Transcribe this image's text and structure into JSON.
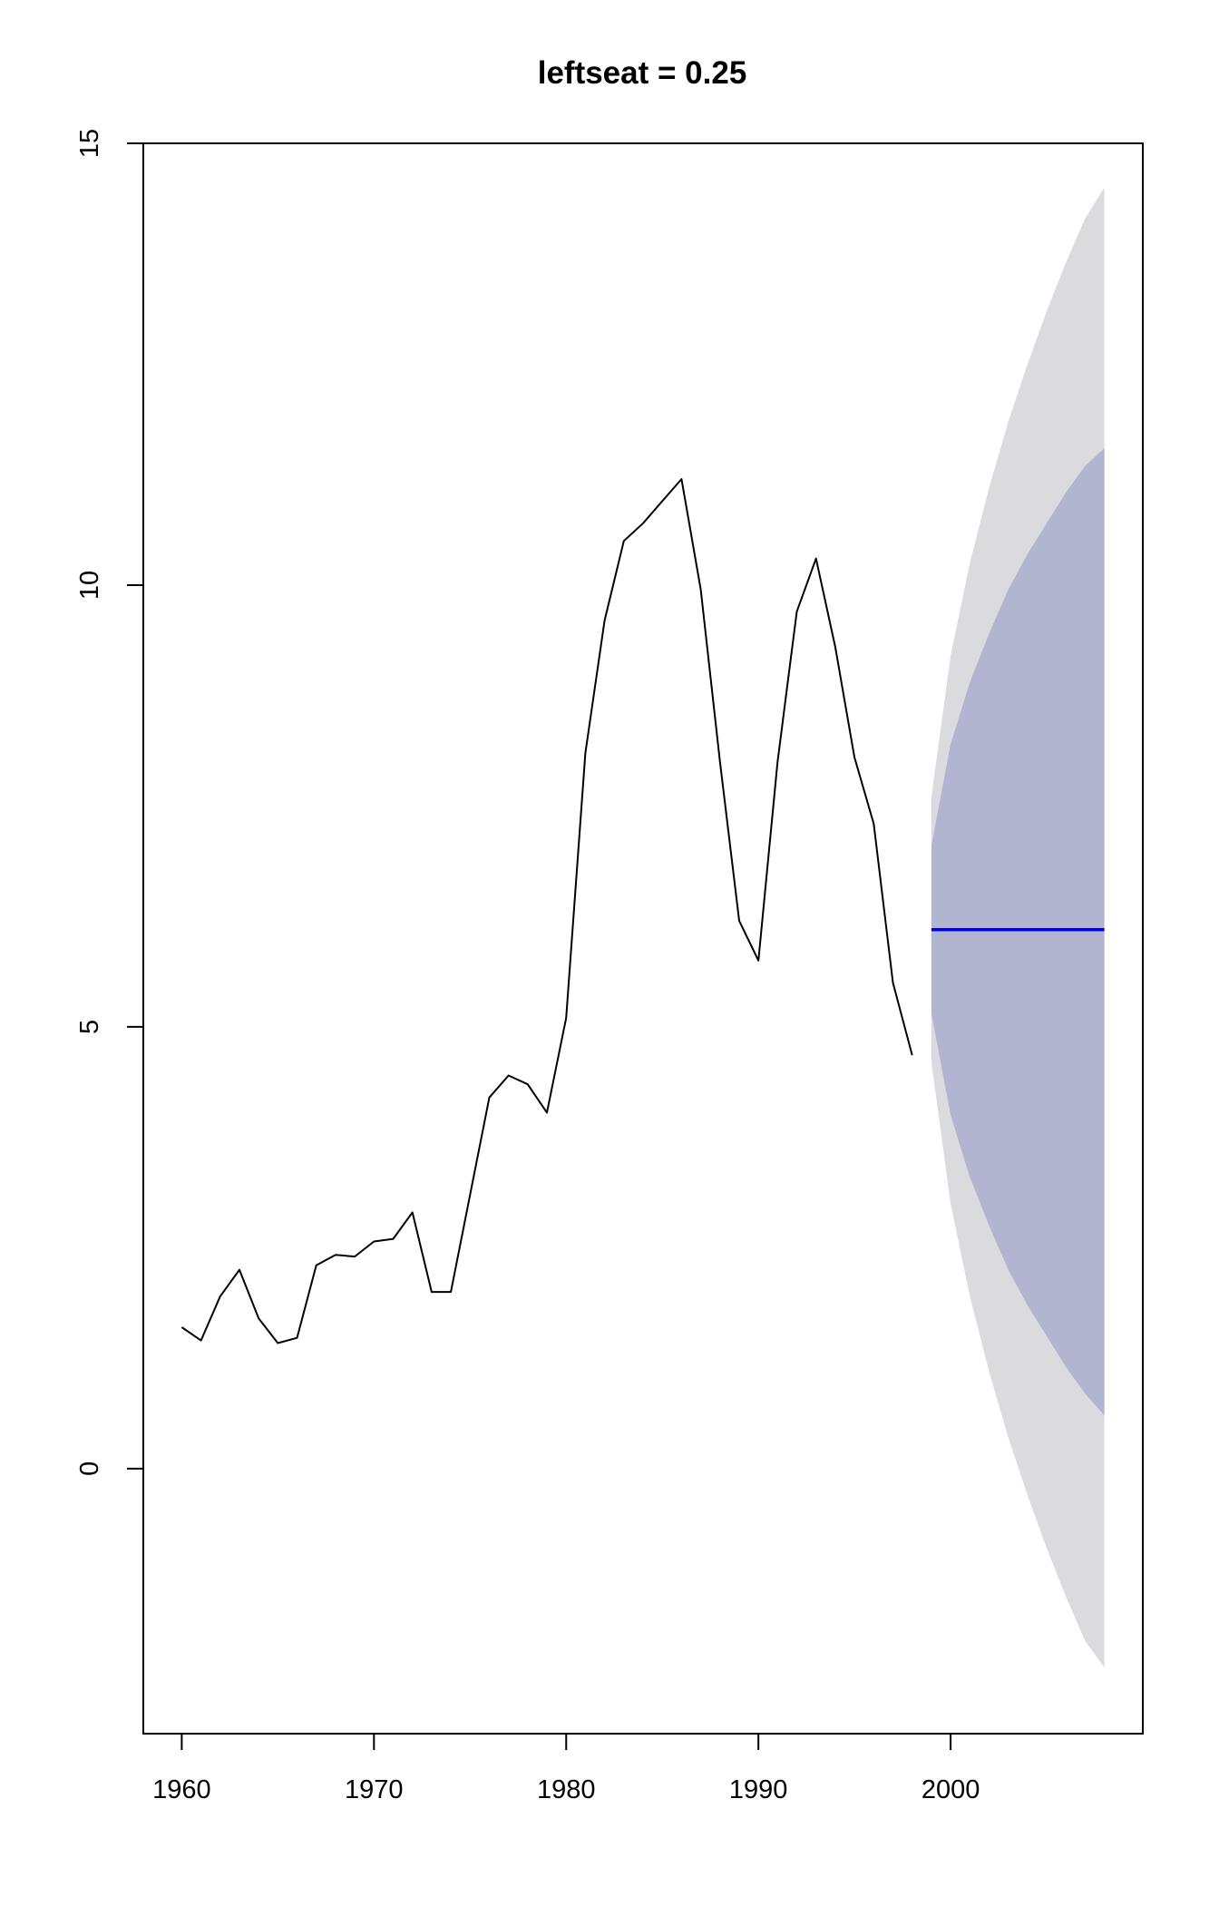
{
  "chart_data": {
    "type": "line",
    "title": "leftseat = 0.25",
    "xlabel": "",
    "ylabel": "",
    "xlim": [
      1958,
      2010
    ],
    "ylim": [
      -3,
      15
    ],
    "x_ticks": [
      1960,
      1970,
      1980,
      1990,
      2000
    ],
    "y_ticks": [
      0,
      5,
      10,
      15
    ],
    "grid": false,
    "series": [
      {
        "kind": "observed",
        "color": "#000000",
        "x": [
          1960,
          1961,
          1962,
          1963,
          1964,
          1965,
          1966,
          1967,
          1968,
          1969,
          1970,
          1971,
          1972,
          1973,
          1974,
          1975,
          1976,
          1977,
          1978,
          1979,
          1980,
          1981,
          1982,
          1983,
          1984,
          1985,
          1986,
          1987,
          1988,
          1989,
          1990,
          1991,
          1992,
          1993,
          1994,
          1995,
          1996,
          1997,
          1998
        ],
        "y": [
          1.6,
          1.45,
          1.95,
          2.25,
          1.7,
          1.42,
          1.48,
          2.3,
          2.42,
          2.4,
          2.57,
          2.6,
          2.9,
          2.0,
          2.0,
          3.1,
          4.2,
          4.45,
          4.35,
          4.03,
          5.1,
          8.1,
          9.6,
          10.5,
          10.7,
          10.95,
          11.2,
          9.95,
          8.0,
          6.2,
          5.75,
          8.0,
          9.7,
          10.3,
          9.3,
          8.05,
          7.3,
          5.5,
          4.68
        ]
      },
      {
        "kind": "forecast",
        "color": "#0000e6",
        "x": [
          1999,
          2000,
          2001,
          2002,
          2003,
          2004,
          2005,
          2006,
          2007,
          2008
        ],
        "y": [
          6.1,
          6.1,
          6.1,
          6.1,
          6.1,
          6.1,
          6.1,
          6.1,
          6.1,
          6.1
        ]
      }
    ],
    "intervals": [
      {
        "level": 95,
        "color": "#dbdbdf",
        "x": [
          1999,
          2000,
          2001,
          2002,
          2003,
          2004,
          2005,
          2006,
          2007,
          2008
        ],
        "lower": [
          4.6,
          3.0,
          1.95,
          1.1,
          0.35,
          -0.3,
          -0.9,
          -1.45,
          -1.95,
          -2.25
        ],
        "upper": [
          7.6,
          9.2,
          10.25,
          11.1,
          11.85,
          12.5,
          13.1,
          13.65,
          14.15,
          14.5
        ]
      },
      {
        "level": 80,
        "color": "#b1b5cf",
        "x": [
          1999,
          2000,
          2001,
          2002,
          2003,
          2004,
          2005,
          2006,
          2007,
          2008
        ],
        "lower": [
          5.15,
          4.0,
          3.3,
          2.75,
          2.25,
          1.85,
          1.5,
          1.15,
          0.85,
          0.6
        ],
        "upper": [
          7.05,
          8.2,
          8.9,
          9.45,
          9.95,
          10.35,
          10.7,
          11.05,
          11.35,
          11.55
        ]
      }
    ]
  }
}
